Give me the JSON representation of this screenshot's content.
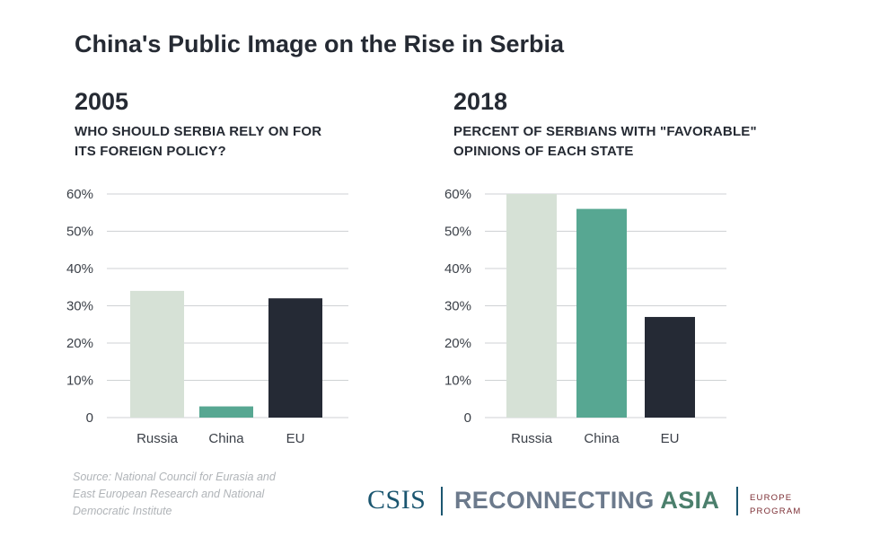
{
  "title": "China's Public Image on the Rise in Serbia",
  "colors": {
    "russia": "#d6e1d6",
    "china": "#57a792",
    "eu": "#252a35",
    "grid": "#cfd2d4"
  },
  "chart_data": [
    {
      "type": "bar",
      "year": "2005",
      "title": "WHO SHOULD SERBIA RELY ON FOR ITS FOREIGN POLICY?",
      "title_lines": [
        "WHO SHOULD SERBIA RELY ON FOR",
        "ITS FOREIGN POLICY?"
      ],
      "categories": [
        "Russia",
        "China",
        "EU"
      ],
      "values": [
        34,
        3,
        32
      ],
      "ylim": [
        0,
        60
      ],
      "yticks": [
        0,
        10,
        20,
        30,
        40,
        50,
        60
      ],
      "ytick_labels": [
        "0",
        "10%",
        "20%",
        "30%",
        "40%",
        "50%",
        "60%"
      ],
      "grid": true
    },
    {
      "type": "bar",
      "year": "2018",
      "title": "PERCENT OF SERBIANS WITH \"FAVORABLE\" OPINIONS OF EACH STATE",
      "title_lines": [
        "PERCENT OF SERBIANS WITH \"FAVORABLE\"",
        "OPINIONS OF EACH STATE"
      ],
      "categories": [
        "Russia",
        "China",
        "EU"
      ],
      "values": [
        60,
        56,
        27
      ],
      "ylim": [
        0,
        60
      ],
      "yticks": [
        0,
        10,
        20,
        30,
        40,
        50,
        60
      ],
      "ytick_labels": [
        "0",
        "10%",
        "20%",
        "30%",
        "40%",
        "50%",
        "60%"
      ],
      "grid": true
    }
  ],
  "source": {
    "lines": [
      "Source: National Council for Eurasia and",
      "East European Research and National",
      "Democratic Institute"
    ]
  },
  "logo": {
    "csis": "CSIS",
    "reconnecting": "RECONNECTING",
    "asia": "ASIA",
    "program_lines": [
      "EUROPE",
      "PROGRAM"
    ]
  }
}
